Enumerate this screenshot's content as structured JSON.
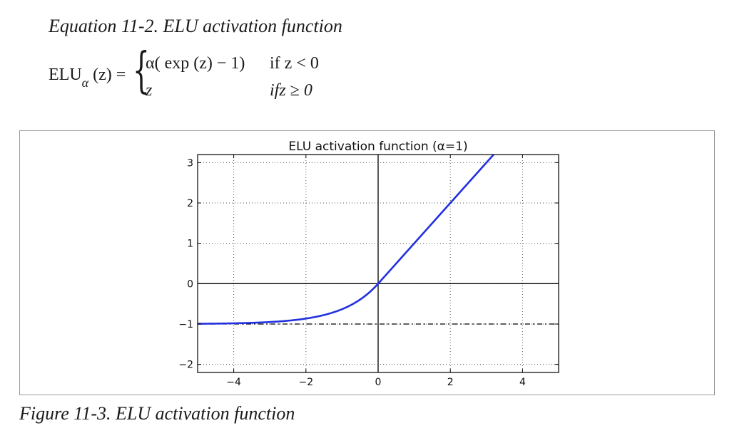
{
  "heading": "Equation 11-2. ELU activation function",
  "equation": {
    "lhs_name": "ELU",
    "lhs_sub": "α",
    "lhs_arg": "(z) =",
    "case1_expr": "α( exp (z) − 1)",
    "case1_cond": "if  z < 0",
    "case2_expr": "z",
    "case2_cond": "ifz ≥ 0"
  },
  "caption": "Figure 11-3. ELU activation function",
  "chart_data": {
    "type": "line",
    "title": "ELU activation function (α=1)",
    "xlabel": "",
    "ylabel": "",
    "xlim": [
      -5,
      5
    ],
    "ylim": [
      -2.2,
      3.2
    ],
    "x_ticks": [
      -4,
      -2,
      0,
      2,
      4
    ],
    "y_ticks": [
      -2,
      -1,
      0,
      1,
      2,
      3
    ],
    "x_tick_labels": [
      "−4",
      "−2",
      "0",
      "2",
      "4"
    ],
    "y_tick_labels": [
      "−2",
      "−1",
      "0",
      "1",
      "2",
      "3"
    ],
    "grid": true,
    "grid_style": "dotted",
    "series": [
      {
        "function": "elu",
        "alpha": 1,
        "color": "#2230e0",
        "style": "solid",
        "x": [
          -5,
          -4.5,
          -4,
          -3.5,
          -3,
          -2.5,
          -2,
          -1.5,
          -1,
          -0.75,
          -0.5,
          -0.25,
          0,
          1,
          2,
          3,
          3.2
        ],
        "y": [
          -0.993,
          -0.989,
          -0.982,
          -0.97,
          -0.95,
          -0.918,
          -0.865,
          -0.777,
          -0.632,
          -0.528,
          -0.393,
          -0.221,
          0,
          1,
          2,
          3,
          3.2
        ]
      }
    ],
    "reference_lines": [
      {
        "orientation": "horizontal",
        "value": 0,
        "style": "solid",
        "color": "#000000"
      },
      {
        "orientation": "vertical",
        "value": 0,
        "style": "solid",
        "color": "#000000"
      },
      {
        "orientation": "horizontal",
        "value": -1,
        "style": "dashdot",
        "color": "#000000"
      }
    ]
  }
}
